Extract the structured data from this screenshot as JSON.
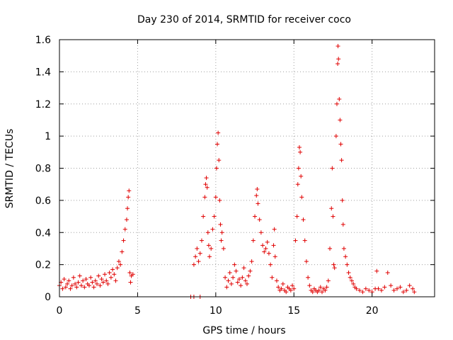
{
  "chart_data": {
    "type": "scatter",
    "title": "Day 230 of 2014, SRMTID for receiver coco",
    "xlabel": "GPS time / hours",
    "ylabel": "SRMTID / TECUs",
    "xlim": [
      0,
      24
    ],
    "ylim": [
      0,
      1.6
    ],
    "xticks": [
      0,
      5,
      10,
      15,
      20
    ],
    "xtick_labels": [
      "0",
      "5",
      "10",
      "15",
      "20"
    ],
    "yticks": [
      0,
      0.2,
      0.4,
      0.6,
      0.8,
      1.0,
      1.2,
      1.4,
      1.6
    ],
    "ytick_labels": [
      "0",
      "0.2",
      "0.4",
      "0.6",
      "0.8",
      "1",
      "1.2",
      "1.4",
      "1.6"
    ],
    "grid": true,
    "marker": "+",
    "color": "#e00000",
    "series": [
      {
        "name": "SRMTID",
        "points": [
          [
            0.0,
            0.07
          ],
          [
            0.1,
            0.09
          ],
          [
            0.2,
            0.05
          ],
          [
            0.3,
            0.11
          ],
          [
            0.4,
            0.06
          ],
          [
            0.5,
            0.08
          ],
          [
            0.6,
            0.1
          ],
          [
            0.7,
            0.05
          ],
          [
            0.8,
            0.07
          ],
          [
            0.9,
            0.12
          ],
          [
            1.0,
            0.08
          ],
          [
            1.1,
            0.06
          ],
          [
            1.2,
            0.09
          ],
          [
            1.3,
            0.13
          ],
          [
            1.4,
            0.07
          ],
          [
            1.5,
            0.1
          ],
          [
            1.6,
            0.06
          ],
          [
            1.7,
            0.11
          ],
          [
            1.8,
            0.08
          ],
          [
            1.9,
            0.07
          ],
          [
            2.0,
            0.12
          ],
          [
            2.1,
            0.09
          ],
          [
            2.2,
            0.06
          ],
          [
            2.3,
            0.1
          ],
          [
            2.4,
            0.08
          ],
          [
            2.5,
            0.13
          ],
          [
            2.6,
            0.07
          ],
          [
            2.7,
            0.11
          ],
          [
            2.8,
            0.09
          ],
          [
            2.9,
            0.14
          ],
          [
            3.0,
            0.1
          ],
          [
            3.1,
            0.08
          ],
          [
            3.2,
            0.15
          ],
          [
            3.3,
            0.12
          ],
          [
            3.4,
            0.17
          ],
          [
            3.5,
            0.14
          ],
          [
            3.6,
            0.1
          ],
          [
            3.7,
            0.18
          ],
          [
            3.8,
            0.22
          ],
          [
            3.9,
            0.2
          ],
          [
            4.0,
            0.28
          ],
          [
            4.1,
            0.35
          ],
          [
            4.2,
            0.42
          ],
          [
            4.3,
            0.48
          ],
          [
            4.35,
            0.55
          ],
          [
            4.4,
            0.62
          ],
          [
            4.45,
            0.66
          ],
          [
            4.5,
            0.15
          ],
          [
            4.55,
            0.09
          ],
          [
            4.6,
            0.13
          ],
          [
            4.7,
            0.14
          ],
          [
            8.4,
            0.0
          ],
          [
            8.6,
            0.0
          ],
          [
            9.0,
            0.0
          ],
          [
            8.6,
            0.2
          ],
          [
            8.7,
            0.25
          ],
          [
            8.8,
            0.3
          ],
          [
            8.9,
            0.22
          ],
          [
            9.0,
            0.27
          ],
          [
            9.1,
            0.35
          ],
          [
            9.2,
            0.5
          ],
          [
            9.3,
            0.62
          ],
          [
            9.35,
            0.7
          ],
          [
            9.4,
            0.74
          ],
          [
            9.45,
            0.68
          ],
          [
            9.5,
            0.4
          ],
          [
            9.55,
            0.32
          ],
          [
            9.6,
            0.25
          ],
          [
            9.7,
            0.3
          ],
          [
            9.8,
            0.42
          ],
          [
            9.9,
            0.5
          ],
          [
            10.0,
            0.62
          ],
          [
            10.05,
            0.8
          ],
          [
            10.1,
            0.95
          ],
          [
            10.15,
            1.02
          ],
          [
            10.2,
            0.85
          ],
          [
            10.25,
            0.6
          ],
          [
            10.3,
            0.45
          ],
          [
            10.35,
            0.35
          ],
          [
            10.4,
            0.4
          ],
          [
            10.5,
            0.3
          ],
          [
            10.6,
            0.12
          ],
          [
            10.7,
            0.06
          ],
          [
            10.8,
            0.1
          ],
          [
            10.9,
            0.15
          ],
          [
            11.0,
            0.08
          ],
          [
            11.1,
            0.12
          ],
          [
            11.2,
            0.2
          ],
          [
            11.3,
            0.16
          ],
          [
            11.4,
            0.09
          ],
          [
            11.5,
            0.11
          ],
          [
            11.6,
            0.07
          ],
          [
            11.7,
            0.12
          ],
          [
            11.8,
            0.18
          ],
          [
            11.9,
            0.1
          ],
          [
            12.0,
            0.08
          ],
          [
            12.1,
            0.13
          ],
          [
            12.2,
            0.16
          ],
          [
            12.3,
            0.22
          ],
          [
            12.4,
            0.35
          ],
          [
            12.5,
            0.5
          ],
          [
            12.6,
            0.63
          ],
          [
            12.65,
            0.67
          ],
          [
            12.7,
            0.58
          ],
          [
            12.8,
            0.48
          ],
          [
            12.9,
            0.4
          ],
          [
            13.0,
            0.32
          ],
          [
            13.1,
            0.28
          ],
          [
            13.2,
            0.3
          ],
          [
            13.3,
            0.34
          ],
          [
            13.4,
            0.27
          ],
          [
            13.5,
            0.2
          ],
          [
            13.6,
            0.12
          ],
          [
            13.7,
            0.32
          ],
          [
            13.75,
            0.42
          ],
          [
            13.8,
            0.25
          ],
          [
            13.9,
            0.1
          ],
          [
            14.0,
            0.06
          ],
          [
            14.1,
            0.04
          ],
          [
            14.2,
            0.05
          ],
          [
            14.3,
            0.08
          ],
          [
            14.4,
            0.04
          ],
          [
            14.5,
            0.03
          ],
          [
            14.6,
            0.06
          ],
          [
            14.7,
            0.05
          ],
          [
            14.8,
            0.04
          ],
          [
            14.9,
            0.07
          ],
          [
            15.0,
            0.05
          ],
          [
            15.1,
            0.35
          ],
          [
            15.2,
            0.5
          ],
          [
            15.25,
            0.7
          ],
          [
            15.3,
            0.8
          ],
          [
            15.35,
            0.93
          ],
          [
            15.4,
            0.9
          ],
          [
            15.45,
            0.75
          ],
          [
            15.5,
            0.62
          ],
          [
            15.6,
            0.48
          ],
          [
            15.7,
            0.35
          ],
          [
            15.8,
            0.22
          ],
          [
            15.9,
            0.12
          ],
          [
            16.0,
            0.07
          ],
          [
            16.1,
            0.04
          ],
          [
            16.2,
            0.03
          ],
          [
            16.3,
            0.05
          ],
          [
            16.4,
            0.04
          ],
          [
            16.5,
            0.03
          ],
          [
            16.6,
            0.04
          ],
          [
            16.7,
            0.06
          ],
          [
            16.8,
            0.03
          ],
          [
            16.9,
            0.05
          ],
          [
            17.0,
            0.04
          ],
          [
            17.1,
            0.06
          ],
          [
            17.2,
            0.1
          ],
          [
            17.3,
            0.3
          ],
          [
            17.4,
            0.55
          ],
          [
            17.45,
            0.8
          ],
          [
            17.5,
            0.5
          ],
          [
            17.55,
            0.2
          ],
          [
            17.6,
            0.18
          ],
          [
            17.7,
            1.0
          ],
          [
            17.75,
            1.2
          ],
          [
            17.8,
            1.45
          ],
          [
            17.82,
            1.56
          ],
          [
            17.85,
            1.48
          ],
          [
            17.9,
            1.23
          ],
          [
            17.95,
            1.1
          ],
          [
            18.0,
            0.95
          ],
          [
            18.05,
            0.85
          ],
          [
            18.1,
            0.6
          ],
          [
            18.15,
            0.45
          ],
          [
            18.2,
            0.3
          ],
          [
            18.3,
            0.25
          ],
          [
            18.4,
            0.2
          ],
          [
            18.5,
            0.15
          ],
          [
            18.6,
            0.12
          ],
          [
            18.7,
            0.1
          ],
          [
            18.8,
            0.08
          ],
          [
            18.9,
            0.06
          ],
          [
            19.0,
            0.05
          ],
          [
            19.2,
            0.04
          ],
          [
            19.4,
            0.03
          ],
          [
            19.6,
            0.05
          ],
          [
            19.8,
            0.04
          ],
          [
            20.0,
            0.03
          ],
          [
            20.2,
            0.05
          ],
          [
            20.3,
            0.16
          ],
          [
            20.4,
            0.05
          ],
          [
            20.6,
            0.04
          ],
          [
            20.8,
            0.06
          ],
          [
            21.0,
            0.15
          ],
          [
            21.2,
            0.07
          ],
          [
            21.4,
            0.04
          ],
          [
            21.6,
            0.05
          ],
          [
            21.8,
            0.06
          ],
          [
            22.0,
            0.03
          ],
          [
            22.2,
            0.04
          ],
          [
            22.4,
            0.07
          ],
          [
            22.6,
            0.05
          ],
          [
            22.7,
            0.03
          ]
        ]
      }
    ]
  }
}
